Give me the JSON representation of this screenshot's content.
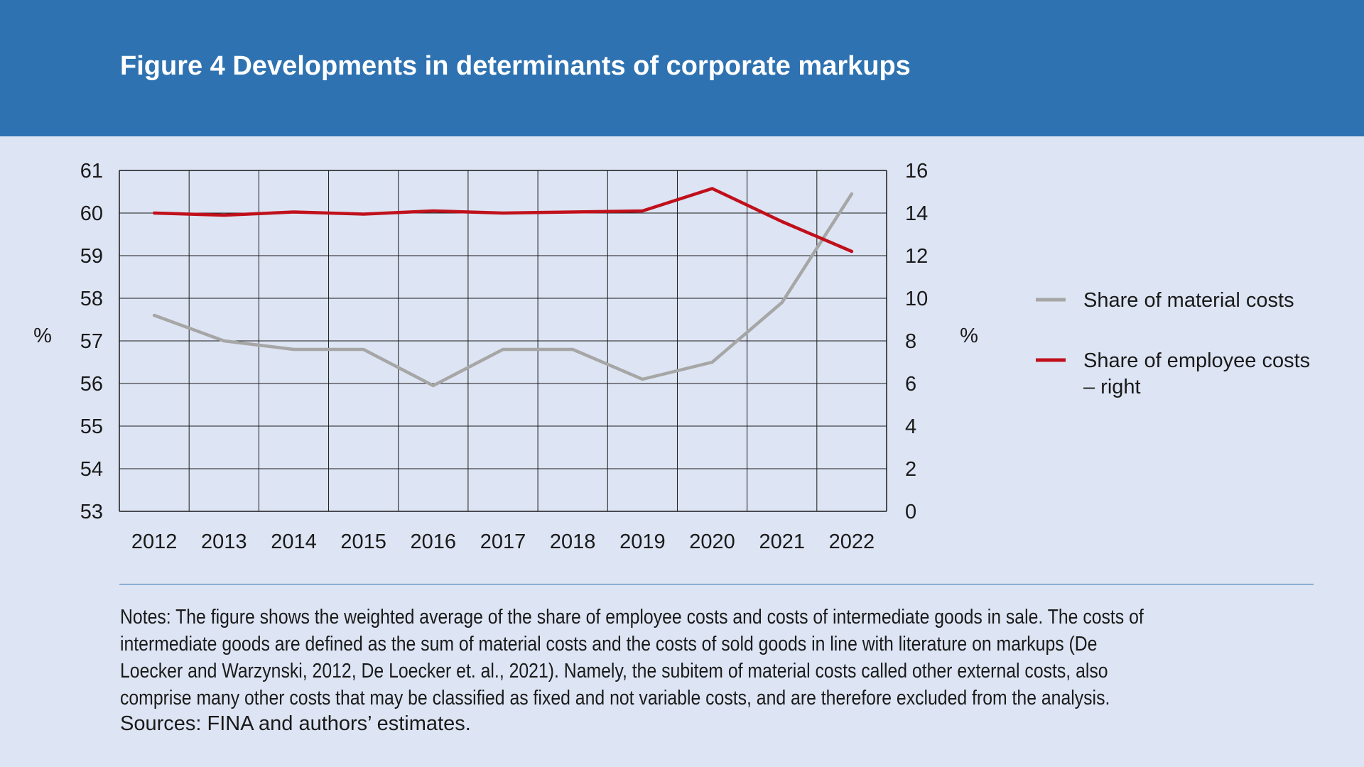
{
  "title": "Figure 4 Developments in determinants of corporate markups",
  "notes": "Notes: The figure shows the weighted average of the share of employee costs and costs of intermediate goods in sale. The costs of intermediate goods are defined as the sum of material costs and the costs of sold goods in line with literature on markups (De Loecker and Warzynski, 2012, De Loecker et. al., 2021). Namely, the subitem of material costs called other external costs, also comprise many other costs that may be classified as fixed and not variable costs, and are therefore excluded from the analysis.",
  "sources": "Sources: FINA and authors’ estimates.",
  "colors": {
    "header": "#2e72b1",
    "background": "#dde4f3",
    "material": "#a6a6a6",
    "employee": "#c0101b"
  },
  "chart_data": {
    "type": "line",
    "x": [
      "2012",
      "2013",
      "2014",
      "2015",
      "2016",
      "2017",
      "2018",
      "2019",
      "2020",
      "2021",
      "2022"
    ],
    "y_left": {
      "label": "%",
      "lim": [
        53,
        61
      ],
      "ticks": [
        "53",
        "54",
        "55",
        "56",
        "57",
        "58",
        "59",
        "60",
        "61"
      ]
    },
    "y_right": {
      "label": "%",
      "lim": [
        0,
        16
      ],
      "ticks": [
        "0",
        "2",
        "4",
        "6",
        "8",
        "10",
        "12",
        "14",
        "16"
      ]
    },
    "grid": true,
    "legend_position": "right",
    "series": [
      {
        "name": "Share of material costs",
        "axis": "left",
        "color": "#a6a6a6",
        "values": [
          57.6,
          57.0,
          56.8,
          56.8,
          55.95,
          56.8,
          56.8,
          56.1,
          56.5,
          57.9,
          60.45
        ]
      },
      {
        "name": "Share of employee costs – right",
        "legend_lines": [
          "Share of employee costs",
          "– right"
        ],
        "axis": "right",
        "color": "#c0101b",
        "values": [
          14.0,
          13.9,
          14.05,
          13.95,
          14.1,
          14.0,
          14.05,
          14.1,
          15.15,
          13.6,
          12.2
        ]
      }
    ]
  }
}
